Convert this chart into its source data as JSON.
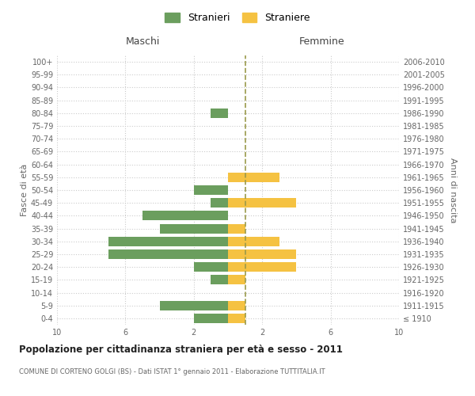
{
  "age_groups": [
    "100+",
    "95-99",
    "90-94",
    "85-89",
    "80-84",
    "75-79",
    "70-74",
    "65-69",
    "60-64",
    "55-59",
    "50-54",
    "45-49",
    "40-44",
    "35-39",
    "30-34",
    "25-29",
    "20-24",
    "15-19",
    "10-14",
    "5-9",
    "0-4"
  ],
  "birth_years": [
    "≤ 1910",
    "1911-1915",
    "1916-1920",
    "1921-1925",
    "1926-1930",
    "1931-1935",
    "1936-1940",
    "1941-1945",
    "1946-1950",
    "1951-1955",
    "1956-1960",
    "1961-1965",
    "1966-1970",
    "1971-1975",
    "1976-1980",
    "1981-1985",
    "1986-1990",
    "1991-1995",
    "1996-2000",
    "2001-2005",
    "2006-2010"
  ],
  "maschi": [
    0,
    0,
    0,
    0,
    1,
    0,
    0,
    0,
    0,
    0,
    2,
    1,
    5,
    4,
    7,
    7,
    2,
    1,
    0,
    4,
    2
  ],
  "femmine": [
    0,
    0,
    0,
    0,
    0,
    0,
    0,
    0,
    0,
    3,
    0,
    4,
    0,
    1,
    3,
    4,
    4,
    1,
    0,
    1,
    1
  ],
  "male_color": "#6b9e5e",
  "female_color": "#f5c242",
  "dashed_line_color": "#9a9a4a",
  "background_color": "#ffffff",
  "grid_color": "#cccccc",
  "title": "Popolazione per cittadinanza straniera per età e sesso - 2011",
  "subtitle": "COMUNE DI CORTENO GOLGI (BS) - Dati ISTAT 1° gennaio 2011 - Elaborazione TUTTITALIA.IT",
  "xlabel_left": "Maschi",
  "xlabel_right": "Femmine",
  "ylabel_left": "Fasce di età",
  "ylabel_right": "Anni di nascita",
  "legend_male": "Stranieri",
  "legend_female": "Straniere",
  "xlim": 10
}
